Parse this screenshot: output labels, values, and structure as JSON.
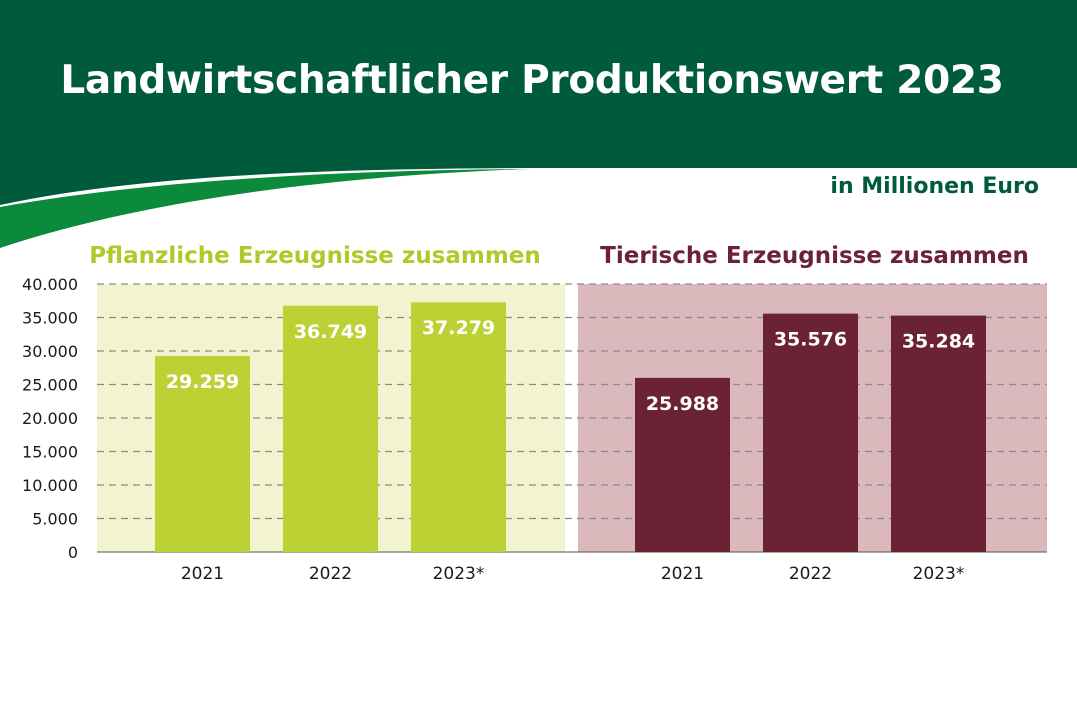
{
  "title": "Landwirtschaftlicher Produktionswert 2023",
  "unit": "in Millionen Euro",
  "colors": {
    "header_green": "#005a3c",
    "accent_green": "#0a8a3a",
    "plant_bar": "#bcd234",
    "plant_background": "#f1f4cf",
    "plant_title": "#afc92a",
    "animal_bar": "#6b2234",
    "animal_background": "#dab8bb",
    "animal_title": "#6b2234"
  },
  "chart_data": [
    {
      "type": "bar",
      "title": "Pflanzliche Erzeugnisse zusammen",
      "categories": [
        "2021",
        "2022",
        "2023*"
      ],
      "values": [
        29259,
        36749,
        37279
      ],
      "value_labels": [
        "29.259",
        "36.749",
        "37.279"
      ],
      "ylim": [
        0,
        40000
      ],
      "yticks": [
        "0",
        "5.000",
        "10.000",
        "15.000",
        "20.000",
        "25.000",
        "30.000",
        "35.000",
        "40.000"
      ],
      "grid": true
    },
    {
      "type": "bar",
      "title": "Tierische Erzeugnisse zusammen",
      "categories": [
        "2021",
        "2022",
        "2023*"
      ],
      "values": [
        25988,
        35576,
        35284
      ],
      "value_labels": [
        "25.988",
        "35.576",
        "35.284"
      ],
      "ylim": [
        0,
        40000
      ],
      "grid": true
    }
  ]
}
